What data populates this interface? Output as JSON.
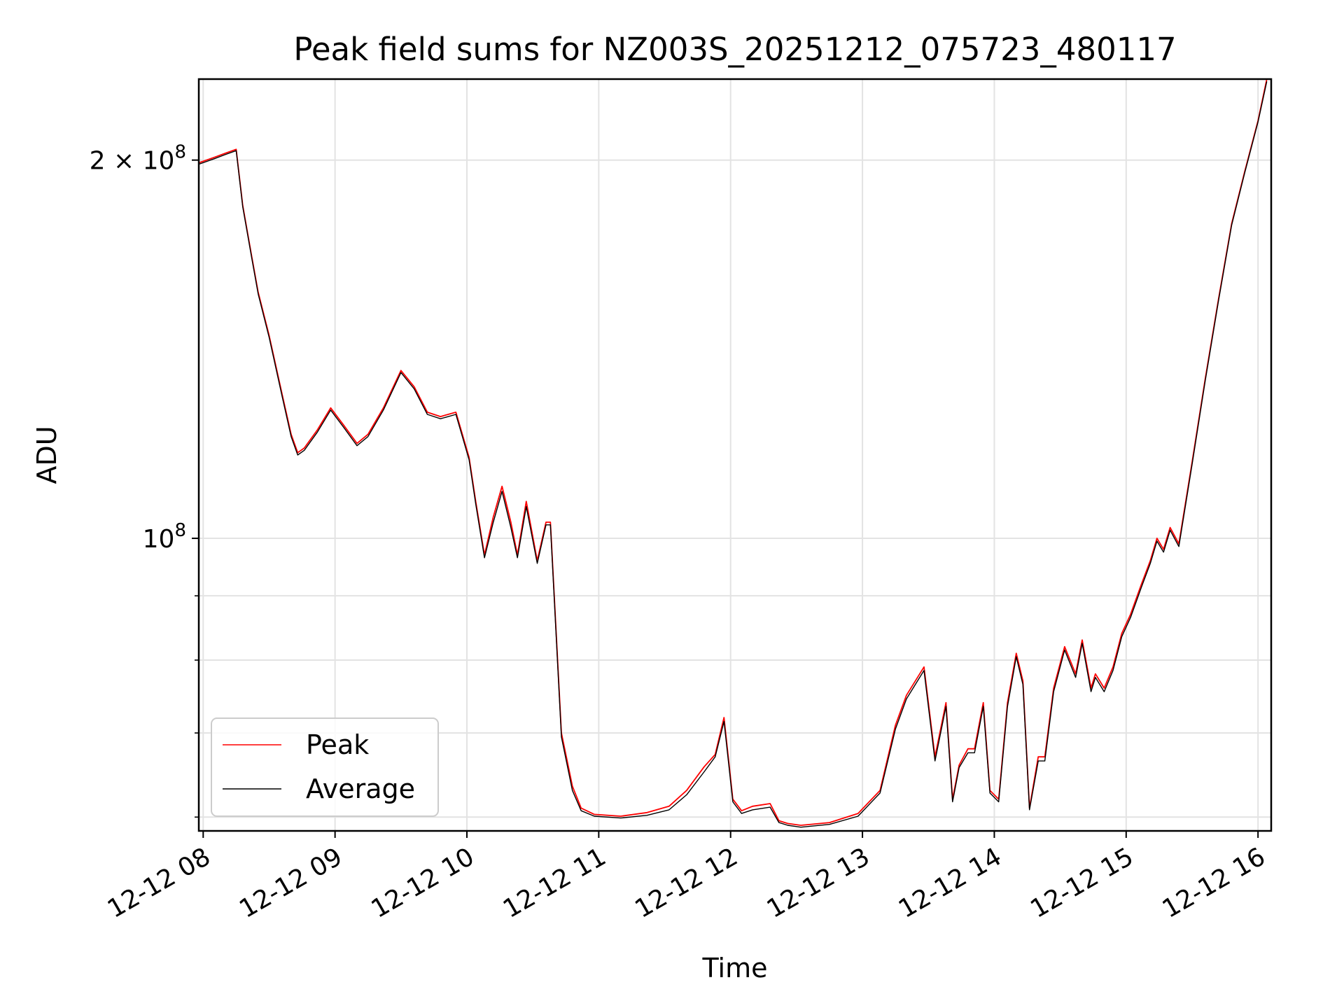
{
  "chart_data": {
    "type": "line",
    "title": "Peak field sums for NZ003S_20251212_075723_480117",
    "xlabel": "Time",
    "ylabel": "ADU",
    "yscale": "log",
    "grid": true,
    "legend_position": "lower-left",
    "xlim": [
      "2025-12-12T07:58",
      "2025-12-12T16:06"
    ],
    "ylim": [
      58500000,
      232000000
    ],
    "x_ticks": [
      {
        "t": "2025-12-12T08:00",
        "label": "12-12 08"
      },
      {
        "t": "2025-12-12T09:00",
        "label": "12-12 09"
      },
      {
        "t": "2025-12-12T10:00",
        "label": "12-12 10"
      },
      {
        "t": "2025-12-12T11:00",
        "label": "12-12 11"
      },
      {
        "t": "2025-12-12T12:00",
        "label": "12-12 12"
      },
      {
        "t": "2025-12-12T13:00",
        "label": "12-12 13"
      },
      {
        "t": "2025-12-12T14:00",
        "label": "12-12 14"
      },
      {
        "t": "2025-12-12T15:00",
        "label": "12-12 15"
      },
      {
        "t": "2025-12-12T16:00",
        "label": "12-12 16"
      }
    ],
    "y_major_ticks": [
      {
        "v": 100000000,
        "base": "10",
        "exp": "8",
        "coef": ""
      },
      {
        "v": 200000000,
        "base": "10",
        "exp": "8",
        "coef": "2 × "
      }
    ],
    "y_minor_ticks": [
      60000000,
      70000000,
      80000000,
      90000000
    ],
    "series": [
      {
        "name": "Peak",
        "color": "#ff0000",
        "x": [
          "2025-12-12T07:58",
          "2025-12-12T08:05",
          "2025-12-12T08:10",
          "2025-12-12T08:15",
          "2025-12-12T08:18",
          "2025-12-12T08:22",
          "2025-12-12T08:25",
          "2025-12-12T08:30",
          "2025-12-12T08:36",
          "2025-12-12T08:40",
          "2025-12-12T08:43",
          "2025-12-12T08:46",
          "2025-12-12T08:52",
          "2025-12-12T08:58",
          "2025-12-12T09:04",
          "2025-12-12T09:10",
          "2025-12-12T09:15",
          "2025-12-12T09:22",
          "2025-12-12T09:30",
          "2025-12-12T09:36",
          "2025-12-12T09:42",
          "2025-12-12T09:48",
          "2025-12-12T09:55",
          "2025-12-12T10:01",
          "2025-12-12T10:04",
          "2025-12-12T10:08",
          "2025-12-12T10:12",
          "2025-12-12T10:16",
          "2025-12-12T10:20",
          "2025-12-12T10:23",
          "2025-12-12T10:27",
          "2025-12-12T10:32",
          "2025-12-12T10:36",
          "2025-12-12T10:38",
          "2025-12-12T10:43",
          "2025-12-12T10:48",
          "2025-12-12T10:52",
          "2025-12-12T10:58",
          "2025-12-12T11:10",
          "2025-12-12T11:22",
          "2025-12-12T11:32",
          "2025-12-12T11:40",
          "2025-12-12T11:48",
          "2025-12-12T11:53",
          "2025-12-12T11:57",
          "2025-12-12T12:01",
          "2025-12-12T12:05",
          "2025-12-12T12:10",
          "2025-12-12T12:18",
          "2025-12-12T12:22",
          "2025-12-12T12:26",
          "2025-12-12T12:32",
          "2025-12-12T12:45",
          "2025-12-12T12:58",
          "2025-12-12T13:08",
          "2025-12-12T13:15",
          "2025-12-12T13:20",
          "2025-12-12T13:28",
          "2025-12-12T13:33",
          "2025-12-12T13:38",
          "2025-12-12T13:41",
          "2025-12-12T13:44",
          "2025-12-12T13:48",
          "2025-12-12T13:51",
          "2025-12-12T13:55",
          "2025-12-12T13:58",
          "2025-12-12T14:02",
          "2025-12-12T14:06",
          "2025-12-12T14:10",
          "2025-12-12T14:13",
          "2025-12-12T14:16",
          "2025-12-12T14:20",
          "2025-12-12T14:23",
          "2025-12-12T14:27",
          "2025-12-12T14:32",
          "2025-12-12T14:37",
          "2025-12-12T14:40",
          "2025-12-12T14:44",
          "2025-12-12T14:46",
          "2025-12-12T14:50",
          "2025-12-12T14:54",
          "2025-12-12T14:58",
          "2025-12-12T15:02",
          "2025-12-12T15:07",
          "2025-12-12T15:11",
          "2025-12-12T15:14",
          "2025-12-12T15:17",
          "2025-12-12T15:20",
          "2025-12-12T15:24",
          "2025-12-12T15:30",
          "2025-12-12T15:36",
          "2025-12-12T15:42",
          "2025-12-12T15:48",
          "2025-12-12T15:54",
          "2025-12-12T16:00",
          "2025-12-12T16:04"
        ],
        "values": [
          199000000,
          201000000,
          202500000,
          204000000,
          184000000,
          168000000,
          157000000,
          145000000,
          130000000,
          121000000,
          117000000,
          118000000,
          122000000,
          127000000,
          123000000,
          119000000,
          121000000,
          127000000,
          136000000,
          132000000,
          126000000,
          125000000,
          126000000,
          116000000,
          107000000,
          97000000,
          104000000,
          110000000,
          103000000,
          97000000,
          107000000,
          96000000,
          103000000,
          103000000,
          70000000,
          63500000,
          61000000,
          60300000,
          60100000,
          60500000,
          61200000,
          63000000,
          65800000,
          67300000,
          72000000,
          62000000,
          60700000,
          61200000,
          61500000,
          59600000,
          59300000,
          59100000,
          59400000,
          60400000,
          63000000,
          71000000,
          75000000,
          79000000,
          67000000,
          74000000,
          62000000,
          66000000,
          68000000,
          68000000,
          74000000,
          63000000,
          62000000,
          74000000,
          81000000,
          77000000,
          61000000,
          67000000,
          67000000,
          76000000,
          82000000,
          78000000,
          83000000,
          76000000,
          78000000,
          76000000,
          79000000,
          84000000,
          87000000,
          92000000,
          96000000,
          100000000,
          98000000,
          102000000,
          99000000,
          115000000,
          134000000,
          155000000,
          178000000,
          196000000,
          215000000,
          232000000
        ]
      },
      {
        "name": "Average",
        "color": "#000000",
        "x": [
          "2025-12-12T07:58",
          "2025-12-12T08:05",
          "2025-12-12T08:10",
          "2025-12-12T08:15",
          "2025-12-12T08:18",
          "2025-12-12T08:22",
          "2025-12-12T08:25",
          "2025-12-12T08:30",
          "2025-12-12T08:36",
          "2025-12-12T08:40",
          "2025-12-12T08:43",
          "2025-12-12T08:46",
          "2025-12-12T08:52",
          "2025-12-12T08:58",
          "2025-12-12T09:04",
          "2025-12-12T09:10",
          "2025-12-12T09:15",
          "2025-12-12T09:22",
          "2025-12-12T09:30",
          "2025-12-12T09:36",
          "2025-12-12T09:42",
          "2025-12-12T09:48",
          "2025-12-12T09:55",
          "2025-12-12T10:01",
          "2025-12-12T10:04",
          "2025-12-12T10:08",
          "2025-12-12T10:12",
          "2025-12-12T10:16",
          "2025-12-12T10:20",
          "2025-12-12T10:23",
          "2025-12-12T10:27",
          "2025-12-12T10:32",
          "2025-12-12T10:36",
          "2025-12-12T10:38",
          "2025-12-12T10:43",
          "2025-12-12T10:48",
          "2025-12-12T10:52",
          "2025-12-12T10:58",
          "2025-12-12T11:10",
          "2025-12-12T11:22",
          "2025-12-12T11:32",
          "2025-12-12T11:40",
          "2025-12-12T11:48",
          "2025-12-12T11:53",
          "2025-12-12T11:57",
          "2025-12-12T12:01",
          "2025-12-12T12:05",
          "2025-12-12T12:10",
          "2025-12-12T12:18",
          "2025-12-12T12:22",
          "2025-12-12T12:26",
          "2025-12-12T12:32",
          "2025-12-12T12:45",
          "2025-12-12T12:58",
          "2025-12-12T13:08",
          "2025-12-12T13:15",
          "2025-12-12T13:20",
          "2025-12-12T13:28",
          "2025-12-12T13:33",
          "2025-12-12T13:38",
          "2025-12-12T13:41",
          "2025-12-12T13:44",
          "2025-12-12T13:48",
          "2025-12-12T13:51",
          "2025-12-12T13:55",
          "2025-12-12T13:58",
          "2025-12-12T14:02",
          "2025-12-12T14:06",
          "2025-12-12T14:10",
          "2025-12-12T14:13",
          "2025-12-12T14:16",
          "2025-12-12T14:20",
          "2025-12-12T14:23",
          "2025-12-12T14:27",
          "2025-12-12T14:32",
          "2025-12-12T14:37",
          "2025-12-12T14:40",
          "2025-12-12T14:44",
          "2025-12-12T14:46",
          "2025-12-12T14:50",
          "2025-12-12T14:54",
          "2025-12-12T14:58",
          "2025-12-12T15:02",
          "2025-12-12T15:07",
          "2025-12-12T15:11",
          "2025-12-12T15:14",
          "2025-12-12T15:17",
          "2025-12-12T15:20",
          "2025-12-12T15:24",
          "2025-12-12T15:30",
          "2025-12-12T15:36",
          "2025-12-12T15:42",
          "2025-12-12T15:48",
          "2025-12-12T15:54",
          "2025-12-12T16:00",
          "2025-12-12T16:04"
        ],
        "values": [
          198500000,
          200500000,
          202000000,
          203500000,
          183500000,
          167500000,
          156500000,
          144500000,
          129500000,
          120500000,
          116500000,
          117500000,
          121500000,
          126500000,
          122500000,
          118500000,
          120500000,
          126500000,
          135500000,
          131500000,
          125500000,
          124500000,
          125500000,
          115500000,
          106500000,
          96500000,
          103000000,
          109000000,
          102000000,
          96500000,
          106000000,
          95500000,
          102500000,
          102500000,
          69500000,
          63000000,
          60700000,
          60100000,
          59900000,
          60200000,
          60800000,
          62500000,
          65200000,
          67000000,
          71500000,
          61700000,
          60400000,
          60800000,
          61100000,
          59400000,
          59100000,
          58900000,
          59200000,
          60100000,
          62700000,
          70500000,
          74500000,
          78500000,
          66500000,
          73500000,
          61700000,
          65700000,
          67500000,
          67500000,
          73500000,
          62700000,
          61700000,
          73500000,
          80500000,
          76500000,
          60800000,
          66500000,
          66500000,
          75500000,
          81500000,
          77500000,
          82500000,
          75500000,
          77500000,
          75500000,
          78500000,
          83500000,
          86500000,
          91500000,
          95500000,
          99500000,
          97500000,
          101500000,
          98500000,
          114500000,
          133500000,
          154500000,
          177500000,
          195500000,
          214500000,
          231000000
        ]
      }
    ]
  }
}
